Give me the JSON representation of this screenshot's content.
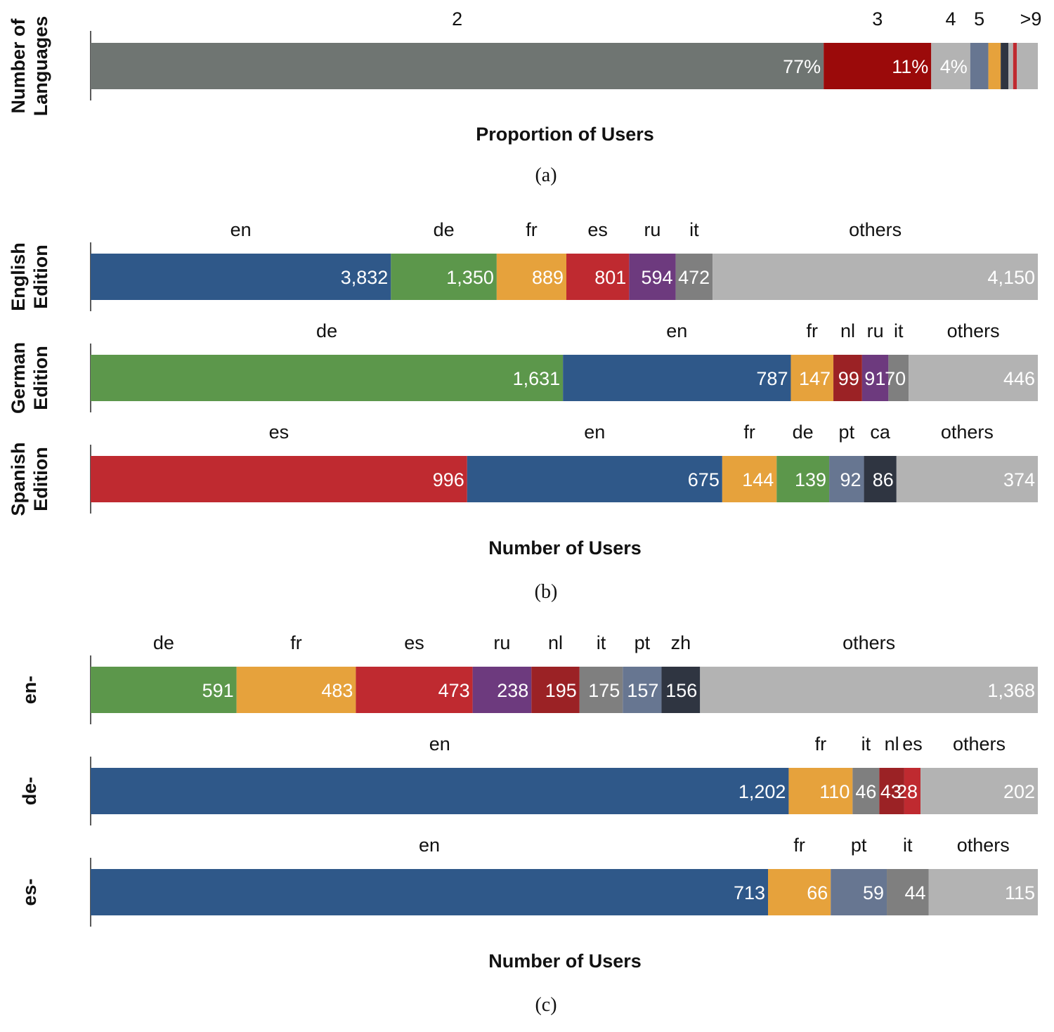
{
  "colors": {
    "dark_gray": "#6f7572",
    "dark_red": "#9b0a0a",
    "light_gray": "#b3b3b3",
    "slate": "#677691",
    "orange": "#e6a23c",
    "navy": "#2f3541",
    "red": "#bf2a30",
    "blue": "#2f5889",
    "green": "#5c974b",
    "purple": "#6d3a7e",
    "maroon": "#9b2225",
    "gray": "#7f7f7f"
  },
  "chart_data": [
    {
      "type": "bar",
      "stacked": true,
      "orientation": "horizontal",
      "caption": "(a)",
      "xlabel": "Proportion of Users",
      "rows": [
        {
          "label_lines": [
            "Number of",
            "Languages"
          ],
          "segments": [
            {
              "category": "2",
              "value": 77,
              "value_label": "77%",
              "color": "#6f7572"
            },
            {
              "category": "3",
              "value": 11.3,
              "value_label": "11%",
              "color": "#9b0a0a"
            },
            {
              "category": "4",
              "value": 4.1,
              "value_label": "4%",
              "color": "#b3b3b3"
            },
            {
              "category": "5",
              "value": 1.9,
              "value_label": "",
              "color": "#677691"
            },
            {
              "category": "",
              "value": 1.3,
              "value_label": "",
              "color": "#e6a23c"
            },
            {
              "category": "",
              "value": 0.8,
              "value_label": "",
              "color": "#2f3541"
            },
            {
              "category": "",
              "value": 0.5,
              "value_label": "",
              "color": "#b3b3b3"
            },
            {
              "category": "",
              "value": 0.4,
              "value_label": "",
              "color": "#bf2a30"
            },
            {
              "category": ">9",
              "value": 2.2,
              "value_label": "",
              "color": "#b3b3b3"
            }
          ]
        }
      ]
    },
    {
      "type": "bar",
      "stacked": true,
      "orientation": "horizontal",
      "caption": "(b)",
      "xlabel": "Number of Users",
      "rows": [
        {
          "label_lines": [
            "English",
            "Edition"
          ],
          "segments": [
            {
              "category": "en",
              "value": 3832,
              "value_label": "3,832",
              "color": "#2f5889"
            },
            {
              "category": "de",
              "value": 1350,
              "value_label": "1,350",
              "color": "#5c974b"
            },
            {
              "category": "fr",
              "value": 889,
              "value_label": "889",
              "color": "#e6a23c"
            },
            {
              "category": "es",
              "value": 801,
              "value_label": "801",
              "color": "#bf2a30"
            },
            {
              "category": "ru",
              "value": 594,
              "value_label": "594",
              "color": "#6d3a7e"
            },
            {
              "category": "it",
              "value": 472,
              "value_label": "472",
              "color": "#7f7f7f"
            },
            {
              "category": "others",
              "value": 4150,
              "value_label": "4,150",
              "color": "#b3b3b3"
            }
          ]
        },
        {
          "label_lines": [
            "German",
            "Edition"
          ],
          "segments": [
            {
              "category": "de",
              "value": 1631,
              "value_label": "1,631",
              "color": "#5c974b"
            },
            {
              "category": "en",
              "value": 787,
              "value_label": "787",
              "color": "#2f5889"
            },
            {
              "category": "fr",
              "value": 147,
              "value_label": "147",
              "color": "#e6a23c"
            },
            {
              "category": "nl",
              "value": 99,
              "value_label": "99",
              "color": "#9b2225"
            },
            {
              "category": "ru",
              "value": 91,
              "value_label": "91",
              "color": "#6d3a7e"
            },
            {
              "category": "it",
              "value": 70,
              "value_label": "70",
              "color": "#7f7f7f"
            },
            {
              "category": "others",
              "value": 446,
              "value_label": "446",
              "color": "#b3b3b3"
            }
          ]
        },
        {
          "label_lines": [
            "Spanish",
            "Edition"
          ],
          "segments": [
            {
              "category": "es",
              "value": 996,
              "value_label": "996",
              "color": "#bf2a30"
            },
            {
              "category": "en",
              "value": 675,
              "value_label": "675",
              "color": "#2f5889"
            },
            {
              "category": "fr",
              "value": 144,
              "value_label": "144",
              "color": "#e6a23c"
            },
            {
              "category": "de",
              "value": 139,
              "value_label": "139",
              "color": "#5c974b"
            },
            {
              "category": "pt",
              "value": 92,
              "value_label": "92",
              "color": "#677691"
            },
            {
              "category": "ca",
              "value": 86,
              "value_label": "86",
              "color": "#2f3541"
            },
            {
              "category": "others",
              "value": 374,
              "value_label": "374",
              "color": "#b3b3b3"
            }
          ]
        }
      ]
    },
    {
      "type": "bar",
      "stacked": true,
      "orientation": "horizontal",
      "caption": "(c)",
      "xlabel": "Number of Users",
      "rows": [
        {
          "label_lines": [
            "en-"
          ],
          "segments": [
            {
              "category": "de",
              "value": 591,
              "value_label": "591",
              "color": "#5c974b"
            },
            {
              "category": "fr",
              "value": 483,
              "value_label": "483",
              "color": "#e6a23c"
            },
            {
              "category": "es",
              "value": 473,
              "value_label": "473",
              "color": "#bf2a30"
            },
            {
              "category": "ru",
              "value": 238,
              "value_label": "238",
              "color": "#6d3a7e"
            },
            {
              "category": "nl",
              "value": 195,
              "value_label": "195",
              "color": "#9b2225"
            },
            {
              "category": "it",
              "value": 175,
              "value_label": "175",
              "color": "#7f7f7f"
            },
            {
              "category": "pt",
              "value": 157,
              "value_label": "157",
              "color": "#677691"
            },
            {
              "category": "zh",
              "value": 156,
              "value_label": "156",
              "color": "#2f3541"
            },
            {
              "category": "others",
              "value": 1368,
              "value_label": "1,368",
              "color": "#b3b3b3"
            }
          ]
        },
        {
          "label_lines": [
            "de-"
          ],
          "segments": [
            {
              "category": "en",
              "value": 1202,
              "value_label": "1,202",
              "color": "#2f5889"
            },
            {
              "category": "fr",
              "value": 110,
              "value_label": "110",
              "color": "#e6a23c"
            },
            {
              "category": "it",
              "value": 46,
              "value_label": "46",
              "color": "#7f7f7f"
            },
            {
              "category": "nl",
              "value": 43,
              "value_label": "43",
              "color": "#9b2225"
            },
            {
              "category": "es",
              "value": 28,
              "value_label": "28",
              "color": "#bf2a30"
            },
            {
              "category": "others",
              "value": 202,
              "value_label": "202",
              "color": "#b3b3b3"
            }
          ]
        },
        {
          "label_lines": [
            "es-"
          ],
          "segments": [
            {
              "category": "en",
              "value": 713,
              "value_label": "713",
              "color": "#2f5889"
            },
            {
              "category": "fr",
              "value": 66,
              "value_label": "66",
              "color": "#e6a23c"
            },
            {
              "category": "pt",
              "value": 59,
              "value_label": "59",
              "color": "#677691"
            },
            {
              "category": "it",
              "value": 44,
              "value_label": "44",
              "color": "#7f7f7f"
            },
            {
              "category": "others",
              "value": 115,
              "value_label": "115",
              "color": "#b3b3b3"
            }
          ]
        }
      ]
    }
  ]
}
